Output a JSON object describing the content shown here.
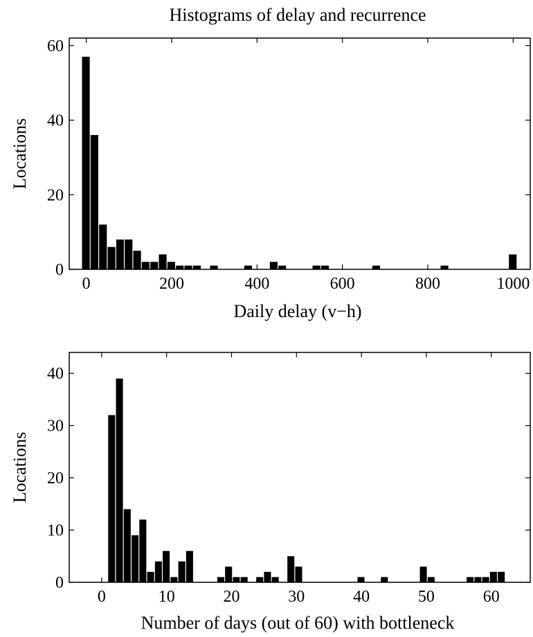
{
  "figure_title": "Histograms of delay and recurrence",
  "chart_data": [
    {
      "type": "bar",
      "xlabel": "Daily delay (v−h)",
      "ylabel": "Locations",
      "xlim": [
        -40,
        1040
      ],
      "ylim": [
        0,
        62
      ],
      "xticks": [
        0,
        200,
        400,
        600,
        800,
        1000
      ],
      "yticks": [
        0,
        20,
        40,
        60
      ],
      "bin_width": 20,
      "grid": false,
      "bars": [
        {
          "x": 0,
          "y": 57
        },
        {
          "x": 20,
          "y": 36
        },
        {
          "x": 40,
          "y": 12
        },
        {
          "x": 60,
          "y": 6
        },
        {
          "x": 80,
          "y": 8
        },
        {
          "x": 100,
          "y": 8
        },
        {
          "x": 120,
          "y": 5
        },
        {
          "x": 140,
          "y": 2
        },
        {
          "x": 160,
          "y": 2
        },
        {
          "x": 180,
          "y": 4
        },
        {
          "x": 200,
          "y": 2
        },
        {
          "x": 220,
          "y": 1
        },
        {
          "x": 240,
          "y": 1
        },
        {
          "x": 260,
          "y": 1
        },
        {
          "x": 300,
          "y": 1
        },
        {
          "x": 380,
          "y": 1
        },
        {
          "x": 440,
          "y": 2
        },
        {
          "x": 460,
          "y": 1
        },
        {
          "x": 540,
          "y": 1
        },
        {
          "x": 560,
          "y": 1
        },
        {
          "x": 680,
          "y": 1
        },
        {
          "x": 840,
          "y": 1
        },
        {
          "x": 1000,
          "y": 4
        }
      ]
    },
    {
      "type": "bar",
      "xlabel": "Number of days (out of 60) with bottleneck",
      "ylabel": "Locations",
      "xlim": [
        -5,
        66
      ],
      "ylim": [
        0,
        44
      ],
      "xticks": [
        0,
        10,
        20,
        30,
        40,
        50,
        60
      ],
      "yticks": [
        0,
        10,
        20,
        30,
        40
      ],
      "bin_width": 1.2,
      "grid": false,
      "bars": [
        {
          "x": 1.6,
          "y": 32
        },
        {
          "x": 2.8,
          "y": 39
        },
        {
          "x": 4.0,
          "y": 14
        },
        {
          "x": 5.2,
          "y": 9
        },
        {
          "x": 6.4,
          "y": 12
        },
        {
          "x": 7.6,
          "y": 2
        },
        {
          "x": 8.8,
          "y": 4
        },
        {
          "x": 10.0,
          "y": 6
        },
        {
          "x": 11.2,
          "y": 1
        },
        {
          "x": 12.4,
          "y": 4
        },
        {
          "x": 13.6,
          "y": 6
        },
        {
          "x": 18.4,
          "y": 1
        },
        {
          "x": 19.6,
          "y": 3
        },
        {
          "x": 20.8,
          "y": 1
        },
        {
          "x": 22.0,
          "y": 1
        },
        {
          "x": 24.4,
          "y": 1
        },
        {
          "x": 25.6,
          "y": 2
        },
        {
          "x": 26.8,
          "y": 1
        },
        {
          "x": 29.2,
          "y": 5
        },
        {
          "x": 30.4,
          "y": 3
        },
        {
          "x": 40.0,
          "y": 1
        },
        {
          "x": 43.6,
          "y": 1
        },
        {
          "x": 49.6,
          "y": 3
        },
        {
          "x": 50.8,
          "y": 1
        },
        {
          "x": 56.8,
          "y": 1
        },
        {
          "x": 58.0,
          "y": 1
        },
        {
          "x": 59.2,
          "y": 1
        },
        {
          "x": 60.4,
          "y": 2
        },
        {
          "x": 61.6,
          "y": 2
        }
      ]
    }
  ]
}
